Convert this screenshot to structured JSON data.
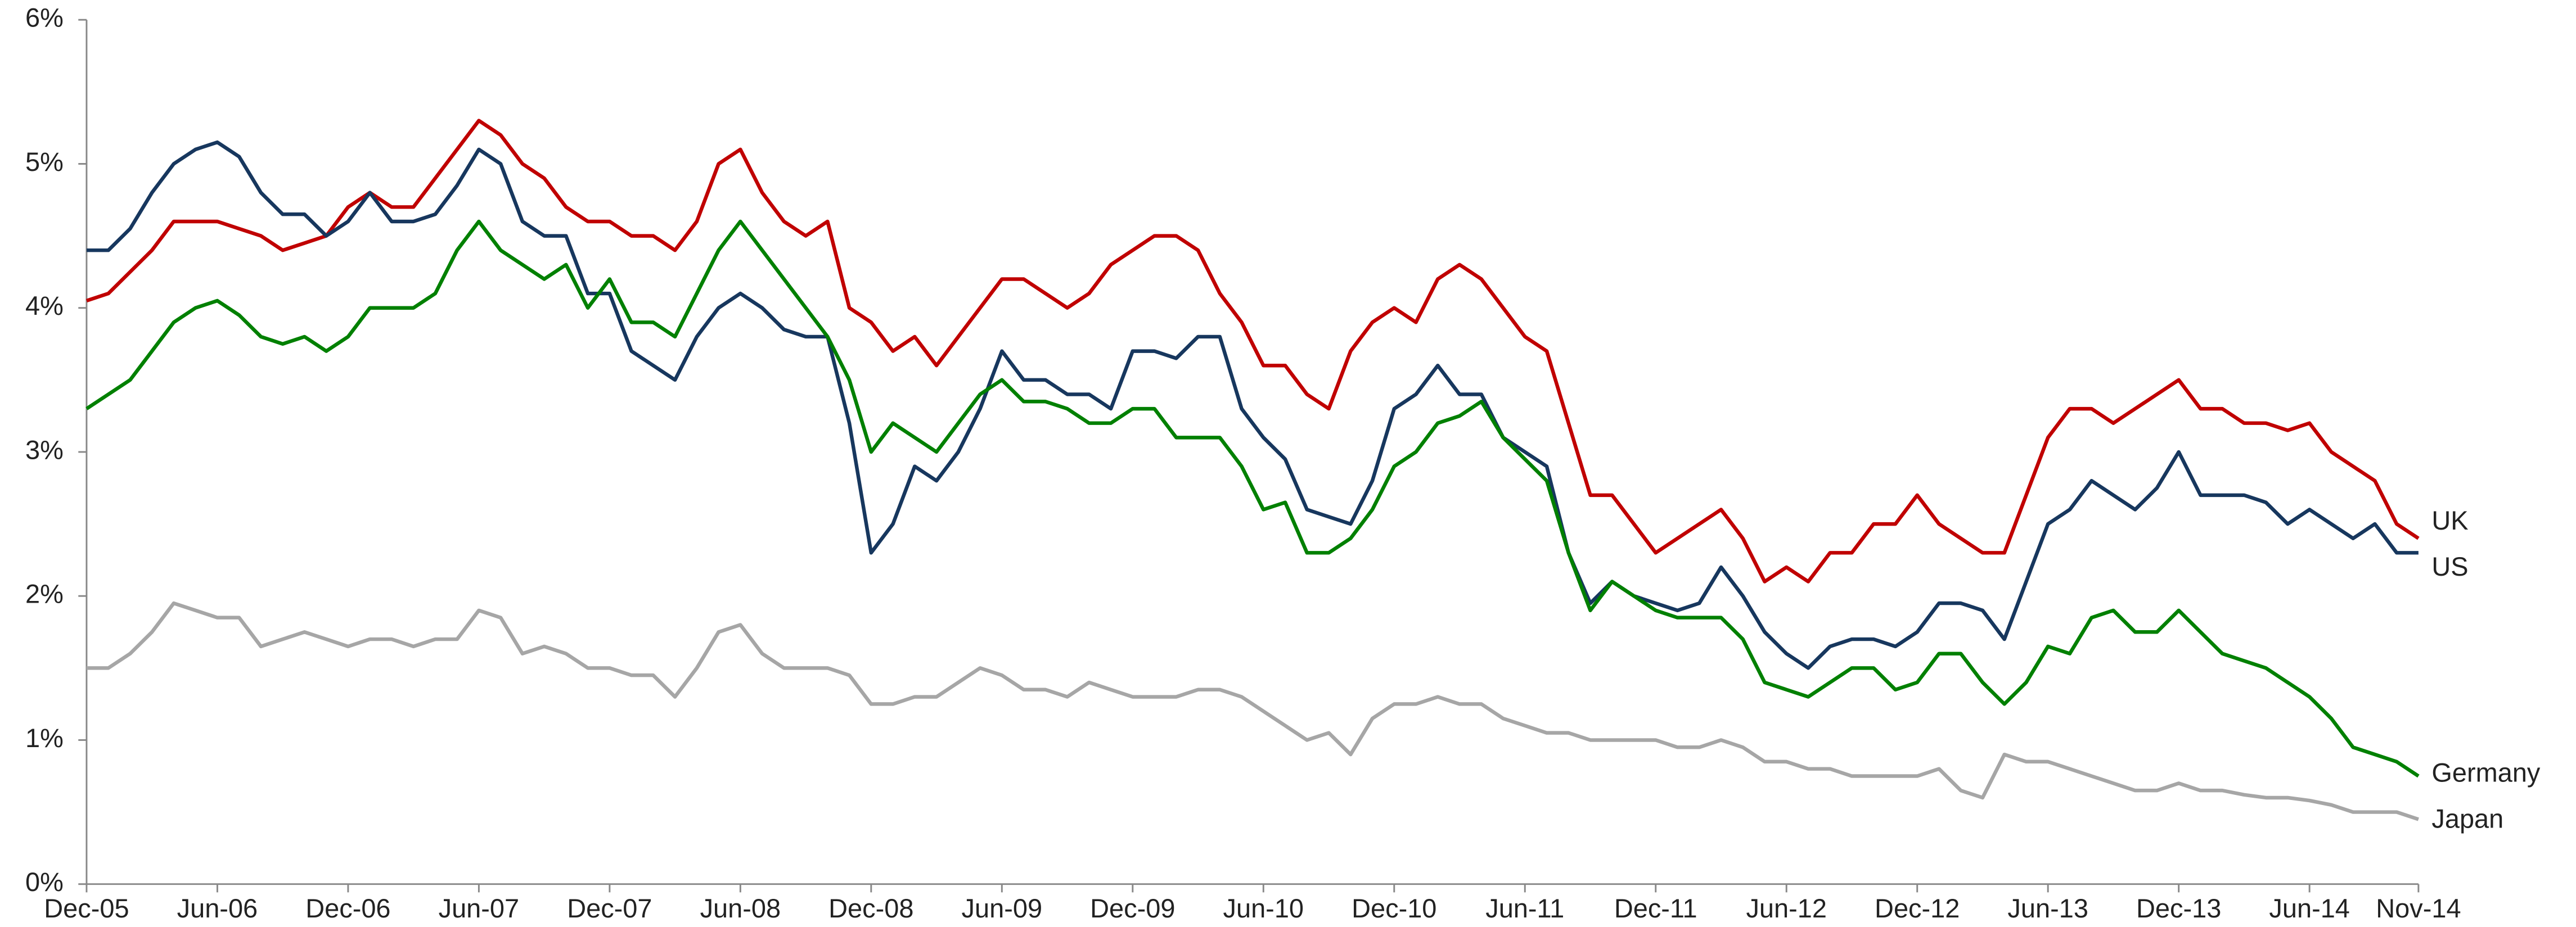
{
  "chart_data": {
    "type": "line",
    "x": [
      "Dec-05",
      "Jan-06",
      "Feb-06",
      "Mar-06",
      "Apr-06",
      "May-06",
      "Jun-06",
      "Jul-06",
      "Aug-06",
      "Sep-06",
      "Oct-06",
      "Nov-06",
      "Dec-06",
      "Jan-07",
      "Feb-07",
      "Mar-07",
      "Apr-07",
      "May-07",
      "Jun-07",
      "Jul-07",
      "Aug-07",
      "Sep-07",
      "Oct-07",
      "Nov-07",
      "Dec-07",
      "Jan-08",
      "Feb-08",
      "Mar-08",
      "Apr-08",
      "May-08",
      "Jun-08",
      "Jul-08",
      "Aug-08",
      "Sep-08",
      "Oct-08",
      "Nov-08",
      "Dec-08",
      "Jan-09",
      "Feb-09",
      "Mar-09",
      "Apr-09",
      "May-09",
      "Jun-09",
      "Jul-09",
      "Aug-09",
      "Sep-09",
      "Oct-09",
      "Nov-09",
      "Dec-09",
      "Jan-10",
      "Feb-10",
      "Mar-10",
      "Apr-10",
      "May-10",
      "Jun-10",
      "Jul-10",
      "Aug-10",
      "Sep-10",
      "Oct-10",
      "Nov-10",
      "Dec-10",
      "Jan-11",
      "Feb-11",
      "Mar-11",
      "Apr-11",
      "May-11",
      "Jun-11",
      "Jul-11",
      "Aug-11",
      "Sep-11",
      "Oct-11",
      "Nov-11",
      "Dec-11",
      "Jan-12",
      "Feb-12",
      "Mar-12",
      "Apr-12",
      "May-12",
      "Jun-12",
      "Jul-12",
      "Aug-12",
      "Sep-12",
      "Oct-12",
      "Nov-12",
      "Dec-12",
      "Jan-13",
      "Feb-13",
      "Mar-13",
      "Apr-13",
      "May-13",
      "Jun-13",
      "Jul-13",
      "Aug-13",
      "Sep-13",
      "Oct-13",
      "Nov-13",
      "Dec-13",
      "Jan-14",
      "Feb-14",
      "Mar-14",
      "Apr-14",
      "May-14",
      "Jun-14",
      "Jul-14",
      "Aug-14",
      "Sep-14",
      "Oct-14",
      "Nov-14"
    ],
    "xticks": [
      "Dec-05",
      "Jun-06",
      "Dec-06",
      "Jun-07",
      "Dec-07",
      "Jun-08",
      "Dec-08",
      "Jun-09",
      "Dec-09",
      "Jun-10",
      "Dec-10",
      "Jun-11",
      "Dec-11",
      "Jun-12",
      "Dec-12",
      "Jun-13",
      "Dec-13",
      "Jun-14",
      "Nov-14"
    ],
    "ylim": [
      0,
      6
    ],
    "yticks": [
      {
        "value": 0,
        "label": "0%"
      },
      {
        "value": 1,
        "label": "1%"
      },
      {
        "value": 2,
        "label": "2%"
      },
      {
        "value": 3,
        "label": "3%"
      },
      {
        "value": 4,
        "label": "4%"
      },
      {
        "value": 5,
        "label": "5%"
      },
      {
        "value": 6,
        "label": "6%"
      }
    ],
    "series": [
      {
        "name": "UK",
        "color": "#c00000",
        "values": [
          4.05,
          4.1,
          4.25,
          4.4,
          4.6,
          4.6,
          4.6,
          4.55,
          4.5,
          4.4,
          4.45,
          4.5,
          4.7,
          4.8,
          4.7,
          4.7,
          4.9,
          5.1,
          5.3,
          5.2,
          5.0,
          4.9,
          4.7,
          4.6,
          4.6,
          4.5,
          4.5,
          4.4,
          4.6,
          5.0,
          5.1,
          4.8,
          4.6,
          4.5,
          4.6,
          4.0,
          3.9,
          3.7,
          3.8,
          3.6,
          3.8,
          4.0,
          4.2,
          4.2,
          4.1,
          4.0,
          4.1,
          4.3,
          4.4,
          4.5,
          4.5,
          4.4,
          4.1,
          3.9,
          3.6,
          3.6,
          3.4,
          3.3,
          3.7,
          3.9,
          4.0,
          3.9,
          4.2,
          4.3,
          4.2,
          4.0,
          3.8,
          3.7,
          3.2,
          2.7,
          2.7,
          2.5,
          2.3,
          2.4,
          2.5,
          2.6,
          2.4,
          2.1,
          2.2,
          2.1,
          2.3,
          2.3,
          2.5,
          2.5,
          2.7,
          2.5,
          2.4,
          2.3,
          2.3,
          2.7,
          3.1,
          3.3,
          3.3,
          3.2,
          3.3,
          3.4,
          3.5,
          3.3,
          3.3,
          3.2,
          3.2,
          3.15,
          3.2,
          3.0,
          2.9,
          2.8,
          2.5,
          2.4
        ]
      },
      {
        "name": "US",
        "color": "#17375e",
        "values": [
          4.4,
          4.4,
          4.55,
          4.8,
          5.0,
          5.1,
          5.15,
          5.05,
          4.8,
          4.65,
          4.65,
          4.5,
          4.6,
          4.8,
          4.6,
          4.6,
          4.65,
          4.85,
          5.1,
          5.0,
          4.6,
          4.5,
          4.5,
          4.1,
          4.1,
          3.7,
          3.6,
          3.5,
          3.8,
          4.0,
          4.1,
          4.0,
          3.85,
          3.8,
          3.8,
          3.2,
          2.3,
          2.5,
          2.9,
          2.8,
          3.0,
          3.3,
          3.7,
          3.5,
          3.5,
          3.4,
          3.4,
          3.3,
          3.7,
          3.7,
          3.65,
          3.8,
          3.8,
          3.3,
          3.1,
          2.95,
          2.6,
          2.55,
          2.5,
          2.8,
          3.3,
          3.4,
          3.6,
          3.4,
          3.4,
          3.1,
          3.0,
          2.9,
          2.3,
          1.95,
          2.1,
          2.0,
          1.95,
          1.9,
          1.95,
          2.2,
          2.0,
          1.75,
          1.6,
          1.5,
          1.65,
          1.7,
          1.7,
          1.65,
          1.75,
          1.95,
          1.95,
          1.9,
          1.7,
          2.1,
          2.5,
          2.6,
          2.8,
          2.7,
          2.6,
          2.75,
          3.0,
          2.7,
          2.7,
          2.7,
          2.65,
          2.5,
          2.6,
          2.5,
          2.4,
          2.5,
          2.3,
          2.3
        ]
      },
      {
        "name": "Germany",
        "color": "#008000",
        "values": [
          3.3,
          3.4,
          3.5,
          3.7,
          3.9,
          4.0,
          4.05,
          3.95,
          3.8,
          3.75,
          3.8,
          3.7,
          3.8,
          4.0,
          4.0,
          4.0,
          4.1,
          4.4,
          4.6,
          4.4,
          4.3,
          4.2,
          4.3,
          4.0,
          4.2,
          3.9,
          3.9,
          3.8,
          4.1,
          4.4,
          4.6,
          4.4,
          4.2,
          4.0,
          3.8,
          3.5,
          3.0,
          3.2,
          3.1,
          3.0,
          3.2,
          3.4,
          3.5,
          3.35,
          3.35,
          3.3,
          3.2,
          3.2,
          3.3,
          3.3,
          3.1,
          3.1,
          3.1,
          2.9,
          2.6,
          2.65,
          2.3,
          2.3,
          2.4,
          2.6,
          2.9,
          3.0,
          3.2,
          3.25,
          3.35,
          3.1,
          2.95,
          2.8,
          2.3,
          1.9,
          2.1,
          2.0,
          1.9,
          1.85,
          1.85,
          1.85,
          1.7,
          1.4,
          1.35,
          1.3,
          1.4,
          1.5,
          1.5,
          1.35,
          1.4,
          1.6,
          1.6,
          1.4,
          1.25,
          1.4,
          1.65,
          1.6,
          1.85,
          1.9,
          1.75,
          1.75,
          1.9,
          1.75,
          1.6,
          1.55,
          1.5,
          1.4,
          1.3,
          1.15,
          0.95,
          0.9,
          0.85,
          0.75
        ]
      },
      {
        "name": "Japan",
        "color": "#a6a6a6",
        "values": [
          1.5,
          1.5,
          1.6,
          1.75,
          1.95,
          1.9,
          1.85,
          1.85,
          1.65,
          1.7,
          1.75,
          1.7,
          1.65,
          1.7,
          1.7,
          1.65,
          1.7,
          1.7,
          1.9,
          1.85,
          1.6,
          1.65,
          1.6,
          1.5,
          1.5,
          1.45,
          1.45,
          1.3,
          1.5,
          1.75,
          1.8,
          1.6,
          1.5,
          1.5,
          1.5,
          1.45,
          1.25,
          1.25,
          1.3,
          1.3,
          1.4,
          1.5,
          1.45,
          1.35,
          1.35,
          1.3,
          1.4,
          1.35,
          1.3,
          1.3,
          1.3,
          1.35,
          1.35,
          1.3,
          1.2,
          1.1,
          1.0,
          1.05,
          0.9,
          1.15,
          1.25,
          1.25,
          1.3,
          1.25,
          1.25,
          1.15,
          1.1,
          1.05,
          1.05,
          1.0,
          1.0,
          1.0,
          1.0,
          0.95,
          0.95,
          1.0,
          0.95,
          0.85,
          0.85,
          0.8,
          0.8,
          0.75,
          0.75,
          0.75,
          0.75,
          0.8,
          0.65,
          0.6,
          0.9,
          0.85,
          0.85,
          0.8,
          0.75,
          0.7,
          0.65,
          0.65,
          0.7,
          0.65,
          0.65,
          0.62,
          0.6,
          0.6,
          0.58,
          0.55,
          0.5,
          0.5,
          0.5,
          0.45
        ]
      }
    ]
  }
}
